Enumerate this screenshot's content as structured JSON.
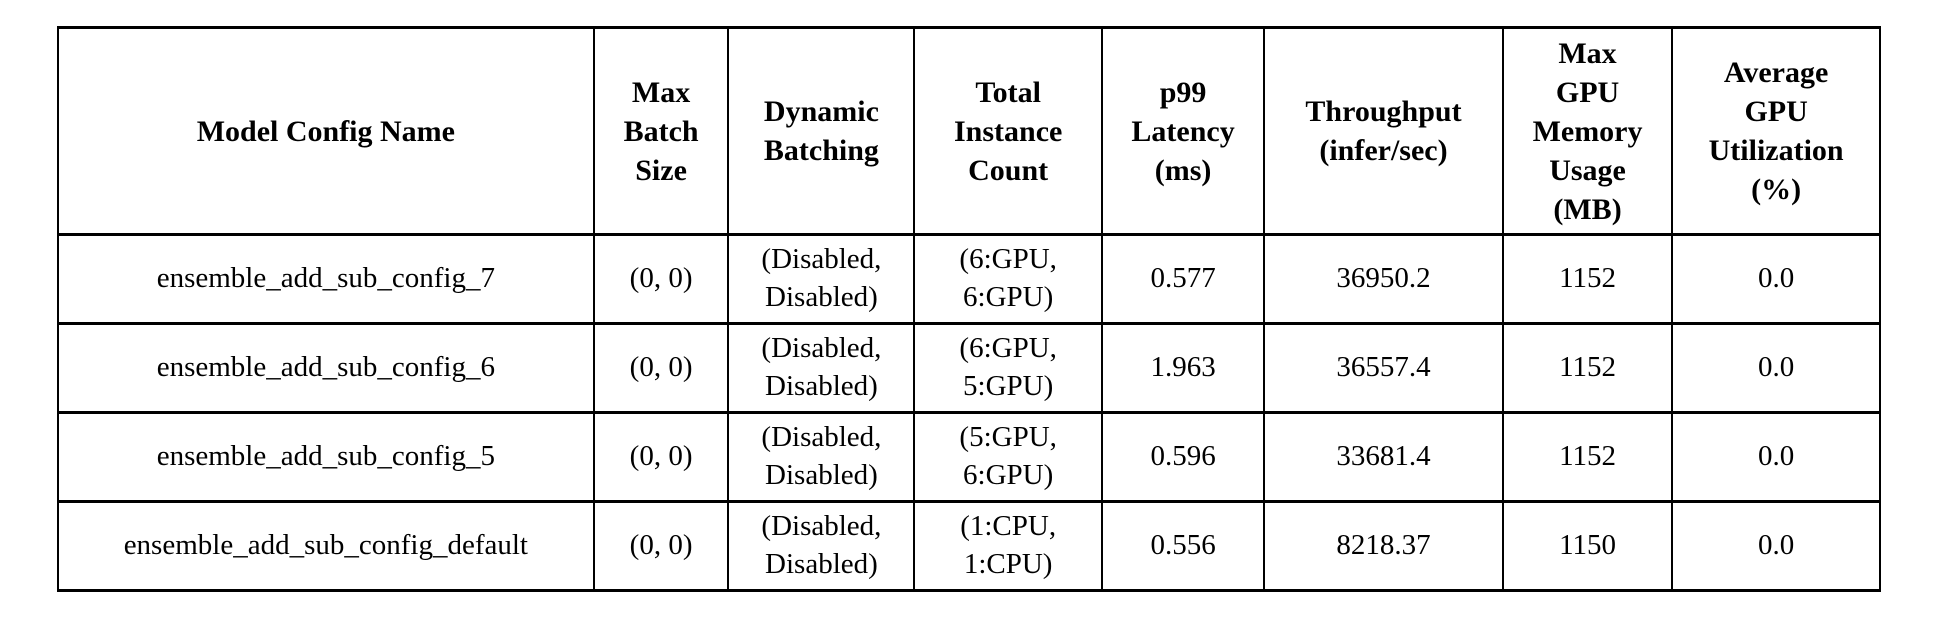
{
  "page": {
    "background_color": "#ffffff",
    "text_color": "#000000",
    "border_color": "#000000"
  },
  "table": {
    "columns": [
      {
        "label": "Model Config Name"
      },
      {
        "label": "Max\nBatch\nSize"
      },
      {
        "label": "Dynamic\nBatching"
      },
      {
        "label": "Total\nInstance\nCount"
      },
      {
        "label": "p99\nLatency\n(ms)"
      },
      {
        "label": "Throughput\n(infer/sec)"
      },
      {
        "label": "Max\nGPU\nMemory\nUsage\n(MB)"
      },
      {
        "label": "Average\nGPU\nUtilization\n(%)"
      }
    ],
    "rows": [
      {
        "cells": [
          "ensemble_add_sub_config_7",
          "(0, 0)",
          "(Disabled,\nDisabled)",
          "(6:GPU,\n6:GPU)",
          "0.577",
          "36950.2",
          "1152",
          "0.0"
        ]
      },
      {
        "cells": [
          "ensemble_add_sub_config_6",
          "(0, 0)",
          "(Disabled,\nDisabled)",
          "(6:GPU,\n5:GPU)",
          "1.963",
          "36557.4",
          "1152",
          "0.0"
        ]
      },
      {
        "cells": [
          "ensemble_add_sub_config_5",
          "(0, 0)",
          "(Disabled,\nDisabled)",
          "(5:GPU,\n6:GPU)",
          "0.596",
          "33681.4",
          "1152",
          "0.0"
        ]
      },
      {
        "cells": [
          "ensemble_add_sub_config_default",
          "(0, 0)",
          "(Disabled,\nDisabled)",
          "(1:CPU,\n1:CPU)",
          "0.556",
          "8218.37",
          "1150",
          "0.0"
        ]
      }
    ]
  },
  "chart_data": {
    "type": "table",
    "columns": [
      "Model Config Name",
      "Max Batch Size",
      "Dynamic Batching",
      "Total Instance Count",
      "p99 Latency (ms)",
      "Throughput (infer/sec)",
      "Max GPU Memory Usage (MB)",
      "Average GPU Utilization (%)"
    ],
    "rows": [
      [
        "ensemble_add_sub_config_7",
        "(0, 0)",
        "(Disabled, Disabled)",
        "(6:GPU, 6:GPU)",
        0.577,
        36950.2,
        1152,
        0.0
      ],
      [
        "ensemble_add_sub_config_6",
        "(0, 0)",
        "(Disabled, Disabled)",
        "(6:GPU, 5:GPU)",
        1.963,
        36557.4,
        1152,
        0.0
      ],
      [
        "ensemble_add_sub_config_5",
        "(0, 0)",
        "(Disabled, Disabled)",
        "(5:GPU, 6:GPU)",
        0.596,
        33681.4,
        1152,
        0.0
      ],
      [
        "ensemble_add_sub_config_default",
        "(0, 0)",
        "(Disabled, Disabled)",
        "(1:CPU, 1:CPU)",
        0.556,
        8218.37,
        1150,
        0.0
      ]
    ]
  }
}
